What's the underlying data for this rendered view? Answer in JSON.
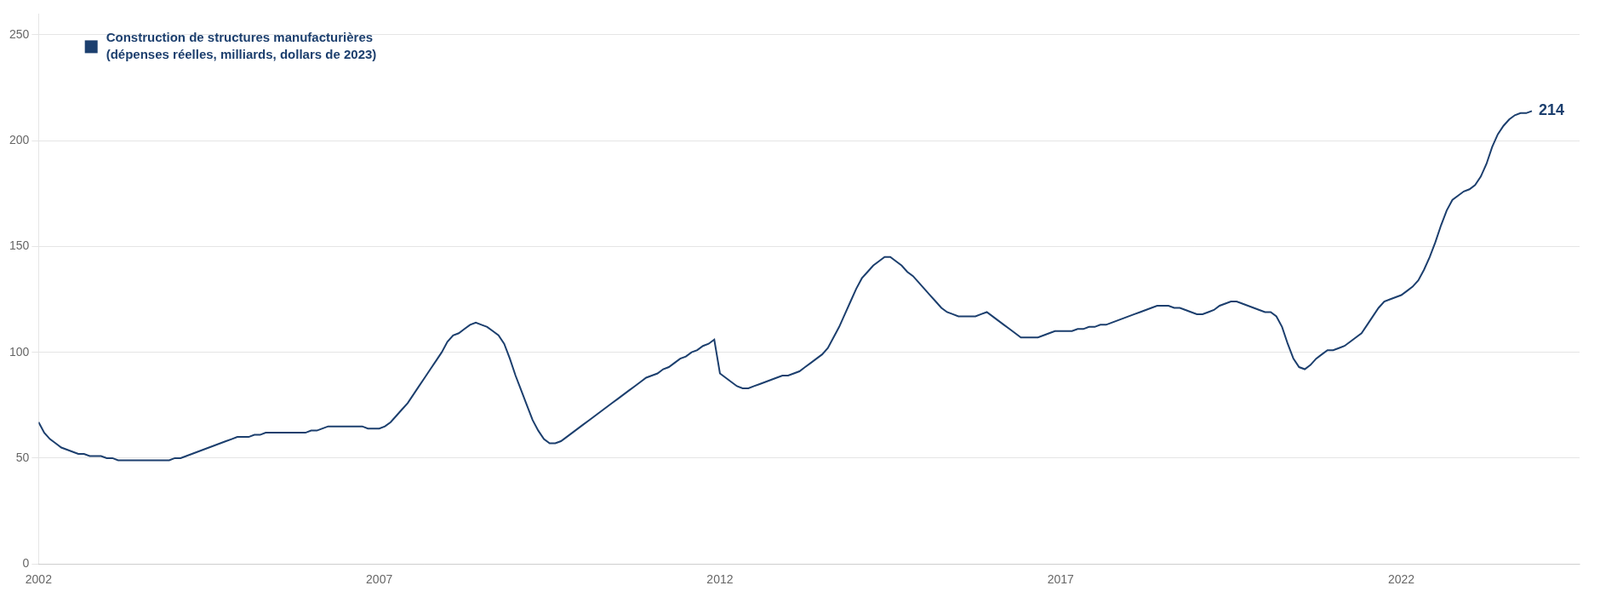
{
  "chart_data": {
    "type": "line",
    "series": [
      {
        "name": "Construction de structures manufacturières\n(dépenses réelles, milliards, dollars de 2023)",
        "color": "#1c3f6e",
        "values": [
          67,
          62,
          59,
          57,
          55,
          54,
          53,
          52,
          52,
          51,
          51,
          51,
          50,
          50,
          49,
          49,
          49,
          49,
          49,
          49,
          49,
          49,
          49,
          49,
          50,
          50,
          51,
          52,
          53,
          54,
          55,
          56,
          57,
          58,
          59,
          60,
          60,
          60,
          61,
          61,
          62,
          62,
          62,
          62,
          62,
          62,
          62,
          62,
          63,
          63,
          64,
          65,
          65,
          65,
          65,
          65,
          65,
          65,
          64,
          64,
          64,
          65,
          67,
          70,
          73,
          76,
          80,
          84,
          88,
          92,
          96,
          100,
          105,
          108,
          109,
          111,
          113,
          114,
          113,
          112,
          110,
          108,
          104,
          97,
          89,
          82,
          75,
          68,
          63,
          59,
          57,
          57,
          58,
          60,
          62,
          64,
          66,
          68,
          70,
          72,
          74,
          76,
          78,
          80,
          82,
          84,
          86,
          88,
          89,
          90,
          92,
          93,
          95,
          97,
          98,
          100,
          101,
          103,
          104,
          106,
          90,
          88,
          86,
          84,
          83,
          83,
          84,
          85,
          86,
          87,
          88,
          89,
          89,
          90,
          91,
          93,
          95,
          97,
          99,
          102,
          107,
          112,
          118,
          124,
          130,
          135,
          138,
          141,
          143,
          145,
          145,
          143,
          141,
          138,
          136,
          133,
          130,
          127,
          124,
          121,
          119,
          118,
          117,
          117,
          117,
          117,
          118,
          119,
          117,
          115,
          113,
          111,
          109,
          107,
          107,
          107,
          107,
          108,
          109,
          110,
          110,
          110,
          110,
          111,
          111,
          112,
          112,
          113,
          113,
          114,
          115,
          116,
          117,
          118,
          119,
          120,
          121,
          122,
          122,
          122,
          121,
          121,
          120,
          119,
          118,
          118,
          119,
          120,
          122,
          123,
          124,
          124,
          123,
          122,
          121,
          120,
          119,
          119,
          117,
          112,
          104,
          97,
          93,
          92,
          94,
          97,
          99,
          101,
          101,
          102,
          103,
          105,
          107,
          109,
          113,
          117,
          121,
          124,
          125,
          126,
          127,
          129,
          131,
          134,
          139,
          145,
          152,
          160,
          167,
          172,
          174,
          176,
          177,
          179,
          183,
          189,
          197,
          203,
          207,
          210,
          212,
          213,
          213,
          214
        ]
      }
    ],
    "x": [
      2002,
      2002.0833333333333,
      2002.1666666666667,
      2002.25,
      2002.3333333333333,
      2002.4166666666667,
      2002.5,
      2002.5833333333333,
      2002.6666666666667,
      2002.75,
      2002.8333333333333,
      2002.9166666666667,
      2003,
      2003.0833333333333,
      2003.1666666666667,
      2003.25,
      2003.3333333333333,
      2003.4166666666667,
      2003.5,
      2003.5833333333333,
      2003.6666666666667,
      2003.75,
      2003.8333333333333,
      2003.9166666666667,
      2004,
      2004.0833333333333,
      2004.1666666666667,
      2004.25,
      2004.3333333333333,
      2004.4166666666667,
      2004.5,
      2004.5833333333333,
      2004.6666666666667,
      2004.75,
      2004.8333333333333,
      2004.9166666666667,
      2005,
      2005.0833333333333,
      2005.1666666666667,
      2005.25,
      2005.3333333333333,
      2005.4166666666667,
      2005.5,
      2005.5833333333333,
      2005.6666666666667,
      2005.75,
      2005.8333333333333,
      2005.9166666666667,
      2006,
      2006.0833333333333,
      2006.1666666666667,
      2006.25,
      2006.3333333333333,
      2006.4166666666667,
      2006.5,
      2006.5833333333333,
      2006.6666666666667,
      2006.75,
      2006.8333333333333,
      2006.9166666666667,
      2007,
      2007.0833333333333,
      2007.1666666666667,
      2007.25,
      2007.3333333333333,
      2007.4166666666667,
      2007.5,
      2007.5833333333333,
      2007.6666666666667,
      2007.75,
      2007.8333333333333,
      2007.9166666666667,
      2008,
      2008.0833333333333,
      2008.1666666666667,
      2008.25,
      2008.3333333333333,
      2008.4166666666667,
      2008.5,
      2008.5833333333333,
      2008.6666666666667,
      2008.75,
      2008.8333333333333,
      2008.9166666666667,
      2009,
      2009.0833333333333,
      2009.1666666666667,
      2009.25,
      2009.3333333333333,
      2009.4166666666667,
      2009.5,
      2009.5833333333333,
      2009.6666666666667,
      2009.75,
      2009.8333333333333,
      2009.9166666666667,
      2010,
      2010.0833333333333,
      2010.1666666666667,
      2010.25,
      2010.3333333333333,
      2010.4166666666667,
      2010.5,
      2010.5833333333333,
      2010.6666666666667,
      2010.75,
      2010.8333333333333,
      2010.9166666666667,
      2011,
      2011.0833333333333,
      2011.1666666666667,
      2011.25,
      2011.3333333333333,
      2011.4166666666667,
      2011.5,
      2011.5833333333333,
      2011.6666666666667,
      2011.75,
      2011.8333333333333,
      2011.9166666666667,
      2012,
      2012.0833333333333,
      2012.1666666666667,
      2012.25,
      2012.3333333333333,
      2012.4166666666667,
      2012.5,
      2012.5833333333333,
      2012.6666666666667,
      2012.75,
      2012.8333333333333,
      2012.9166666666667,
      2013,
      2013.0833333333333,
      2013.1666666666667,
      2013.25,
      2013.3333333333333,
      2013.4166666666667,
      2013.5,
      2013.5833333333333,
      2013.6666666666667,
      2013.75,
      2013.8333333333333,
      2013.9166666666667,
      2014,
      2014.0833333333333,
      2014.1666666666667,
      2014.25,
      2014.3333333333333,
      2014.4166666666667,
      2014.5,
      2014.5833333333333,
      2014.6666666666667,
      2014.75,
      2014.8333333333333,
      2014.9166666666667,
      2015,
      2015.0833333333333,
      2015.1666666666667,
      2015.25,
      2015.3333333333333,
      2015.4166666666667,
      2015.5,
      2015.5833333333333,
      2015.6666666666667,
      2015.75,
      2015.8333333333333,
      2015.9166666666667,
      2016,
      2016.0833333333333,
      2016.1666666666667,
      2016.25,
      2016.3333333333333,
      2016.4166666666667,
      2016.5,
      2016.5833333333333,
      2016.6666666666667,
      2016.75,
      2016.8333333333333,
      2016.9166666666667,
      2017,
      2017.0833333333333,
      2017.1666666666667,
      2017.25,
      2017.3333333333333,
      2017.4166666666667,
      2017.5,
      2017.5833333333333,
      2017.6666666666667,
      2017.75,
      2017.8333333333333,
      2017.9166666666667,
      2018,
      2018.0833333333333,
      2018.1666666666667,
      2018.25,
      2018.3333333333333,
      2018.4166666666667,
      2018.5,
      2018.5833333333333,
      2018.6666666666667,
      2018.75,
      2018.8333333333333,
      2018.9166666666667,
      2019,
      2019.0833333333333,
      2019.1666666666667,
      2019.25,
      2019.3333333333333,
      2019.4166666666667,
      2019.5,
      2019.5833333333333,
      2019.6666666666667,
      2019.75,
      2019.8333333333333,
      2019.9166666666667,
      2020,
      2020.0833333333333,
      2020.1666666666667,
      2020.25,
      2020.3333333333333,
      2020.4166666666667,
      2020.5,
      2020.5833333333333,
      2020.6666666666667,
      2020.75,
      2020.8333333333333,
      2020.9166666666667,
      2021,
      2021.0833333333333,
      2021.1666666666667,
      2021.25,
      2021.3333333333333,
      2021.4166666666667,
      2021.5,
      2021.5833333333333,
      2021.6666666666667,
      2021.75,
      2021.8333333333333,
      2021.9166666666667,
      2022,
      2022.0833333333333,
      2022.1666666666667,
      2022.25,
      2022.3333333333333,
      2022.4166666666667,
      2022.5,
      2022.5833333333333,
      2022.6666666666667,
      2022.75,
      2022.8333333333333,
      2022.9166666666667,
      2023,
      2023.0833333333333,
      2023.1666666666667,
      2023.25,
      2023.3333333333333,
      2023.4166666666667,
      2023.5,
      2023.5833333333333,
      2023.6666666666667,
      2023.75,
      2023.8333333333333,
      2023.9166666666667
    ],
    "xlim": [
      2002,
      2024.6166666666668
    ],
    "xticks": [
      2002,
      2007,
      2012,
      2017,
      2022
    ],
    "ylim": [
      0,
      260
    ],
    "yticks": [
      0,
      50,
      100,
      150,
      200,
      250
    ],
    "grid": "y",
    "legend": "upper left",
    "annotations": [
      {
        "text": "214",
        "x": 2023.9166666666667,
        "y": 214,
        "color": "#1c3f6e"
      }
    ]
  }
}
